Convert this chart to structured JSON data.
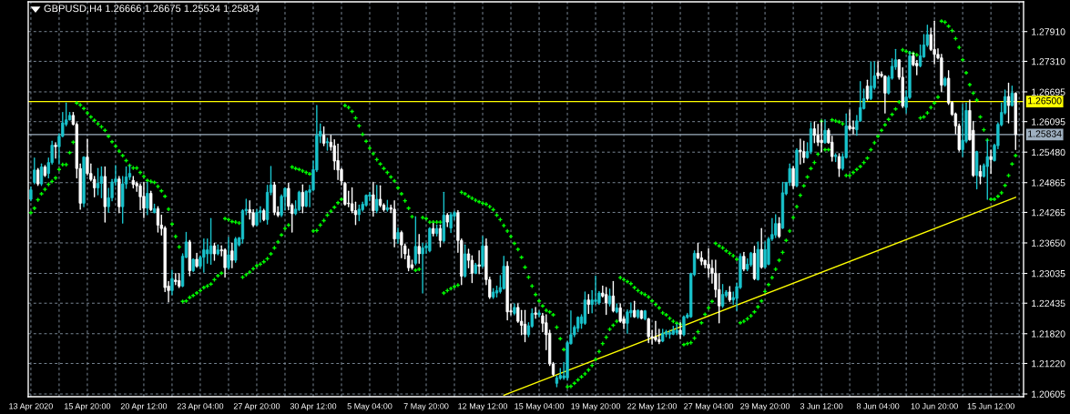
{
  "chart_data": {
    "type": "candlestick",
    "title": "GBPUSD,H4 1.26666 1.26675 1.25534 1.25834",
    "categories": [
      "13 Apr 2020",
      null,
      null,
      null,
      null,
      null,
      null,
      null,
      null,
      null,
      null,
      null,
      null,
      null,
      null,
      null,
      "15 Apr 20:00",
      null,
      null,
      null,
      null,
      null,
      null,
      null,
      null,
      null,
      null,
      null,
      null,
      null,
      null,
      null,
      "20 Apr 12:00",
      null,
      null,
      null,
      null,
      null,
      null,
      null,
      null,
      null,
      null,
      null,
      null,
      null,
      null,
      null,
      "23 Apr 04:00",
      null,
      null,
      null,
      null,
      null,
      null,
      null,
      null,
      null,
      null,
      null,
      null,
      null,
      null,
      null,
      "27 Apr 20:00",
      null,
      null,
      null,
      null,
      null,
      null,
      null,
      null,
      null,
      null,
      null,
      null,
      null,
      null,
      null,
      "30 Apr 12:00",
      null,
      null,
      null,
      null,
      null,
      null,
      null,
      null,
      null,
      null,
      null,
      null,
      null,
      null,
      null,
      "5 May 04:00",
      null,
      null,
      null,
      null,
      null,
      null,
      null,
      null,
      null,
      null,
      null,
      null,
      null,
      null,
      null,
      "7 May 20:00",
      null,
      null,
      null,
      null,
      null,
      null,
      null,
      null,
      null,
      null,
      null,
      null,
      null,
      null,
      null,
      "12 May 12:00",
      null,
      null,
      null,
      null,
      null,
      null,
      null,
      null,
      null,
      null,
      null,
      null,
      null,
      null,
      null,
      "15 May 04:00",
      null,
      null,
      null,
      null,
      null,
      null,
      null,
      null,
      null,
      null,
      null,
      null,
      null,
      null,
      null,
      "19 May 20:00",
      null,
      null,
      null,
      null,
      null,
      null,
      null,
      null,
      null,
      null,
      null,
      null,
      null,
      null,
      null,
      "22 May 12:00",
      null,
      null,
      null,
      null,
      null,
      null,
      null,
      null,
      null,
      null,
      null,
      null,
      null,
      null,
      null,
      "27 May 04:00",
      null,
      null,
      null,
      null,
      null,
      null,
      null,
      null,
      null,
      null,
      null,
      null,
      null,
      null,
      null,
      "29 May 20:00",
      null,
      null,
      null,
      null,
      null,
      null,
      null,
      null,
      null,
      null,
      null,
      null,
      null,
      null,
      null,
      "3 Jun 12:00",
      null,
      null,
      null,
      null,
      null,
      null,
      null,
      null,
      null,
      null,
      null,
      null,
      null,
      null,
      null,
      "8 Jun 04:00",
      null,
      null,
      null,
      null,
      null,
      null,
      null,
      null,
      null,
      null,
      null,
      null,
      null,
      null,
      null,
      "10 Jun 20:00",
      null,
      null,
      null,
      null,
      null,
      null,
      null,
      null,
      null,
      null,
      null,
      null,
      null,
      null,
      null,
      "15 Jun 12:00",
      null,
      null,
      null,
      null,
      null,
      null,
      null
    ],
    "ohlc": [
      [
        1.2453,
        1.2478,
        1.245,
        1.2472
      ],
      [
        1.2487,
        1.2536,
        1.2484,
        1.2512
      ],
      [
        1.2512,
        1.2515,
        1.2481,
        1.2484
      ],
      [
        1.2484,
        1.2524,
        1.2481,
        1.2518
      ],
      [
        1.2518,
        1.2521,
        1.2499,
        1.2501
      ],
      [
        1.2505,
        1.2536,
        1.2496,
        1.2527
      ],
      [
        1.2527,
        1.257,
        1.2524,
        1.2562
      ],
      [
        1.2562,
        1.2567,
        1.2536,
        1.2559
      ],
      [
        1.2559,
        1.2585,
        1.2524,
        1.258
      ],
      [
        1.258,
        1.2628,
        1.2579,
        1.2607
      ],
      [
        1.2604,
        1.2647,
        1.2601,
        1.2613
      ],
      [
        1.2613,
        1.2628,
        1.2613,
        1.2622
      ],
      [
        1.2622,
        1.2628,
        1.2603,
        1.2604
      ],
      [
        1.2604,
        1.2607,
        1.2496,
        1.2515
      ],
      [
        1.2515,
        1.2524,
        1.2433,
        1.2445
      ],
      [
        1.2445,
        1.2539,
        1.2438,
        1.2538
      ],
      [
        1.2538,
        1.2574,
        1.2502,
        1.2505
      ],
      [
        1.2505,
        1.2524,
        1.249,
        1.2493
      ],
      [
        1.2493,
        1.2499,
        1.2458,
        1.2476
      ],
      [
        1.2476,
        1.2515,
        1.2462,
        1.2485
      ],
      [
        1.2485,
        1.2518,
        1.2456,
        1.2499
      ],
      [
        1.2499,
        1.2518,
        1.2407,
        1.2438
      ],
      [
        1.2438,
        1.2475,
        1.2427,
        1.2456
      ],
      [
        1.2456,
        1.2493,
        1.245,
        1.2488
      ],
      [
        1.2488,
        1.2521,
        1.2481,
        1.2494
      ],
      [
        1.2494,
        1.2499,
        1.2426,
        1.2438
      ],
      [
        1.2438,
        1.2499,
        1.2405,
        1.2484
      ],
      [
        1.2484,
        1.2518,
        1.2475,
        1.2498
      ],
      [
        1.2498,
        1.2521,
        1.2493,
        1.2505
      ],
      [
        1.2491,
        1.2499,
        1.2476,
        1.2483
      ],
      [
        1.2485,
        1.2488,
        1.2469,
        1.248
      ],
      [
        1.248,
        1.2484,
        1.2432,
        1.2458
      ],
      [
        1.2459,
        1.2487,
        1.2416,
        1.2435
      ],
      [
        1.2435,
        1.2487,
        1.2422,
        1.2465
      ],
      [
        1.2465,
        1.2469,
        1.243,
        1.2432
      ],
      [
        1.2426,
        1.2443,
        1.2426,
        1.2434
      ],
      [
        1.2434,
        1.2438,
        1.2387,
        1.2401
      ],
      [
        1.2401,
        1.2421,
        1.2381,
        1.2394
      ],
      [
        1.2395,
        1.2398,
        1.2267,
        1.2275
      ],
      [
        1.2278,
        1.2287,
        1.2246,
        1.2269
      ],
      [
        1.2269,
        1.231,
        1.2261,
        1.2293
      ],
      [
        1.229,
        1.2303,
        1.2281,
        1.2287
      ],
      [
        1.2289,
        1.2303,
        1.2275,
        1.2278
      ],
      [
        1.2278,
        1.2343,
        1.2277,
        1.2338
      ],
      [
        1.2336,
        1.2386,
        1.2335,
        1.2367
      ],
      [
        1.2367,
        1.237,
        1.2299,
        1.2309
      ],
      [
        1.2309,
        1.2333,
        1.2307,
        1.2332
      ],
      [
        1.2332,
        1.2344,
        1.2316,
        1.2318
      ],
      [
        1.2318,
        1.2339,
        1.2315,
        1.2336
      ],
      [
        1.2336,
        1.2373,
        1.2306,
        1.2351
      ],
      [
        1.2343,
        1.2373,
        1.2324,
        1.2351
      ],
      [
        1.2343,
        1.2414,
        1.2322,
        1.2359
      ],
      [
        1.2359,
        1.2364,
        1.233,
        1.2343
      ],
      [
        1.2343,
        1.2361,
        1.2341,
        1.2351
      ],
      [
        1.2351,
        1.2359,
        1.2339,
        1.2349
      ],
      [
        1.2351,
        1.2353,
        1.2296,
        1.2315
      ],
      [
        1.2315,
        1.2376,
        1.2312,
        1.2341
      ],
      [
        1.2349,
        1.2364,
        1.2315,
        1.233
      ],
      [
        1.233,
        1.2376,
        1.2326,
        1.2373
      ],
      [
        1.2361,
        1.2376,
        1.2359,
        1.2375
      ],
      [
        1.2373,
        1.2432,
        1.2365,
        1.243
      ],
      [
        1.243,
        1.2453,
        1.2422,
        1.2433
      ],
      [
        1.2432,
        1.245,
        1.2413,
        1.2426
      ],
      [
        1.2426,
        1.2432,
        1.2398,
        1.2401
      ],
      [
        1.2401,
        1.2432,
        1.24,
        1.2427
      ],
      [
        1.2426,
        1.2438,
        1.2407,
        1.243
      ],
      [
        1.243,
        1.2433,
        1.241,
        1.2412
      ],
      [
        1.2412,
        1.2481,
        1.2403,
        1.2467
      ],
      [
        1.2467,
        1.2519,
        1.2462,
        1.2482
      ],
      [
        1.2482,
        1.2487,
        1.2422,
        1.2427
      ],
      [
        1.2427,
        1.2438,
        1.2418,
        1.2421
      ],
      [
        1.2421,
        1.2462,
        1.2418,
        1.2459
      ],
      [
        1.2458,
        1.2476,
        1.2432,
        1.2475
      ],
      [
        1.2475,
        1.2485,
        1.2432,
        1.2439
      ],
      [
        1.2441,
        1.2444,
        1.2387,
        1.2424
      ],
      [
        1.2424,
        1.245,
        1.2422,
        1.2433
      ],
      [
        1.2432,
        1.2469,
        1.243,
        1.2467
      ],
      [
        1.2467,
        1.2482,
        1.2426,
        1.2439
      ],
      [
        1.2439,
        1.247,
        1.2438,
        1.2469
      ],
      [
        1.2467,
        1.2481,
        1.2438,
        1.2472
      ],
      [
        1.2472,
        1.253,
        1.247,
        1.2513
      ],
      [
        1.2512,
        1.2642,
        1.2509,
        1.2582
      ],
      [
        1.258,
        1.2605,
        1.2567,
        1.259
      ],
      [
        1.2582,
        1.2599,
        1.2561,
        1.2566
      ],
      [
        1.2567,
        1.2576,
        1.2552,
        1.2569
      ],
      [
        1.2568,
        1.2582,
        1.2552,
        1.2559
      ],
      [
        1.2561,
        1.2573,
        1.2513,
        1.253
      ],
      [
        1.2531,
        1.2564,
        1.2493,
        1.2512
      ],
      [
        1.2513,
        1.2515,
        1.2482,
        1.249
      ],
      [
        1.2485,
        1.2487,
        1.2441,
        1.2443
      ],
      [
        1.2445,
        1.2469,
        1.2438,
        1.2444
      ],
      [
        1.2444,
        1.2476,
        1.2426,
        1.243
      ],
      [
        1.243,
        1.2447,
        1.2402,
        1.2422
      ],
      [
        1.2422,
        1.2441,
        1.241,
        1.2433
      ],
      [
        1.2432,
        1.2447,
        1.2429,
        1.2443
      ],
      [
        1.2441,
        1.2462,
        1.2439,
        1.2461
      ],
      [
        1.2459,
        1.2467,
        1.245,
        1.2462
      ],
      [
        1.2462,
        1.2487,
        1.2419,
        1.243
      ],
      [
        1.243,
        1.2481,
        1.2426,
        1.2453
      ],
      [
        1.2453,
        1.248,
        1.2438,
        1.2441
      ],
      [
        1.2441,
        1.2444,
        1.2429,
        1.2432
      ],
      [
        1.2432,
        1.2451,
        1.2429,
        1.2436
      ],
      [
        1.2436,
        1.2441,
        1.2426,
        1.2433
      ],
      [
        1.2433,
        1.245,
        1.2357,
        1.2373
      ],
      [
        1.2373,
        1.2395,
        1.2364,
        1.2386
      ],
      [
        1.2386,
        1.2389,
        1.2335,
        1.2361
      ],
      [
        1.2359,
        1.2363,
        1.2333,
        1.2343
      ],
      [
        1.2339,
        1.2352,
        1.2309,
        1.2315
      ],
      [
        1.2321,
        1.233,
        1.2312,
        1.2315
      ],
      [
        1.2324,
        1.2418,
        1.2321,
        1.2358
      ],
      [
        1.2358,
        1.2382,
        1.2324,
        1.2343
      ],
      [
        1.2343,
        1.2364,
        1.2264,
        1.2355
      ],
      [
        1.2355,
        1.2364,
        1.2344,
        1.2359
      ],
      [
        1.2349,
        1.2396,
        1.2347,
        1.2394
      ],
      [
        1.2394,
        1.2404,
        1.2379,
        1.2384
      ],
      [
        1.2384,
        1.2401,
        1.2379,
        1.2394
      ],
      [
        1.2394,
        1.2401,
        1.2357,
        1.237
      ],
      [
        1.2369,
        1.2467,
        1.2367,
        1.2421
      ],
      [
        1.2421,
        1.2424,
        1.2398,
        1.2407
      ],
      [
        1.2395,
        1.2426,
        1.2386,
        1.2422
      ],
      [
        1.2419,
        1.2429,
        1.2412,
        1.2426
      ],
      [
        1.2426,
        1.243,
        1.2346,
        1.237
      ],
      [
        1.237,
        1.2373,
        1.2281,
        1.2298
      ],
      [
        1.2298,
        1.2361,
        1.2296,
        1.2343
      ],
      [
        1.2343,
        1.2352,
        1.2315,
        1.233
      ],
      [
        1.233,
        1.2339,
        1.2285,
        1.2304
      ],
      [
        1.2304,
        1.2324,
        1.2303,
        1.2321
      ],
      [
        1.2321,
        1.2349,
        1.2303,
        1.2318
      ],
      [
        1.2318,
        1.2378,
        1.2316,
        1.2359
      ],
      [
        1.2359,
        1.2373,
        1.2281,
        1.2291
      ],
      [
        1.2291,
        1.2296,
        1.2253,
        1.2256
      ],
      [
        1.2256,
        1.2273,
        1.2253,
        1.2266
      ],
      [
        1.2264,
        1.2278,
        1.2256,
        1.2269
      ],
      [
        1.2267,
        1.2299,
        1.2264,
        1.2275
      ],
      [
        1.2273,
        1.2338,
        1.2272,
        1.2318
      ],
      [
        1.2318,
        1.2327,
        1.221,
        1.2226
      ],
      [
        1.2228,
        1.2242,
        1.222,
        1.2226
      ],
      [
        1.2223,
        1.2242,
        1.222,
        1.2235
      ],
      [
        1.2235,
        1.2242,
        1.2205,
        1.2207
      ],
      [
        1.2207,
        1.2229,
        1.218,
        1.2199
      ],
      [
        1.2201,
        1.2229,
        1.2166,
        1.2181
      ],
      [
        1.218,
        1.2204,
        1.2176,
        1.2198
      ],
      [
        1.2197,
        1.2232,
        1.2195,
        1.2223
      ],
      [
        1.2224,
        1.2235,
        1.2213,
        1.2221
      ],
      [
        1.222,
        1.2228,
        1.2216,
        1.2224
      ],
      [
        1.2218,
        1.2223,
        1.2186,
        1.2203
      ],
      [
        1.2204,
        1.222,
        1.215,
        1.218
      ],
      [
        1.2183,
        1.2189,
        1.2118,
        1.2121
      ],
      [
        1.2121,
        1.2124,
        1.2097,
        1.21
      ],
      [
        1.2082,
        1.2097,
        1.2075,
        1.2093
      ],
      [
        1.2092,
        1.2112,
        1.209,
        1.2098
      ],
      [
        1.2093,
        1.2124,
        1.209,
        1.2097
      ],
      [
        1.2093,
        1.2167,
        1.2089,
        1.2164
      ],
      [
        1.2162,
        1.2228,
        1.2161,
        1.218
      ],
      [
        1.218,
        1.2198,
        1.2176,
        1.2195
      ],
      [
        1.2193,
        1.2216,
        1.2186,
        1.2215
      ],
      [
        1.2203,
        1.222,
        1.2193,
        1.2216
      ],
      [
        1.2203,
        1.2266,
        1.2201,
        1.225
      ],
      [
        1.225,
        1.2261,
        1.2223,
        1.2241
      ],
      [
        1.2241,
        1.2269,
        1.2224,
        1.225
      ],
      [
        1.2247,
        1.2298,
        1.2241,
        1.225
      ],
      [
        1.2244,
        1.2267,
        1.2241,
        1.2264
      ],
      [
        1.2264,
        1.2278,
        1.2256,
        1.2258
      ],
      [
        1.2261,
        1.2275,
        1.2221,
        1.2244
      ],
      [
        1.2242,
        1.2272,
        1.2238,
        1.2258
      ],
      [
        1.2258,
        1.2287,
        1.2226,
        1.2228
      ],
      [
        1.2226,
        1.2242,
        1.2224,
        1.2234
      ],
      [
        1.2234,
        1.2242,
        1.2205,
        1.2207
      ],
      [
        1.2212,
        1.2216,
        1.2192,
        1.2203
      ],
      [
        1.2203,
        1.223,
        1.2183,
        1.2226
      ],
      [
        1.2224,
        1.2244,
        1.2216,
        1.2229
      ],
      [
        1.2229,
        1.2247,
        1.2215,
        1.2216
      ],
      [
        1.2216,
        1.223,
        1.2213,
        1.2229
      ],
      [
        1.2228,
        1.2229,
        1.2212,
        1.2213
      ],
      [
        1.2212,
        1.2229,
        1.221,
        1.2228
      ],
      [
        1.2212,
        1.2213,
        1.2164,
        1.2176
      ],
      [
        1.2176,
        1.2189,
        1.2161,
        1.2173
      ],
      [
        1.2175,
        1.2207,
        1.2167,
        1.217
      ],
      [
        1.217,
        1.2191,
        1.2162,
        1.2166
      ],
      [
        1.2167,
        1.2191,
        1.2166,
        1.2183
      ],
      [
        1.2181,
        1.2189,
        1.2176,
        1.2186
      ],
      [
        1.2181,
        1.2189,
        1.2173,
        1.2184
      ],
      [
        1.2181,
        1.2197,
        1.218,
        1.2189
      ],
      [
        1.2184,
        1.2201,
        1.218,
        1.2189
      ],
      [
        1.2189,
        1.2204,
        1.2172,
        1.2181
      ],
      [
        1.218,
        1.2218,
        1.2178,
        1.2216
      ],
      [
        1.2215,
        1.2223,
        1.2213,
        1.222
      ],
      [
        1.2216,
        1.2304,
        1.2215,
        1.2303
      ],
      [
        1.2301,
        1.2349,
        1.2299,
        1.2344
      ],
      [
        1.2344,
        1.2364,
        1.2333,
        1.2335
      ],
      [
        1.2335,
        1.2347,
        1.2321,
        1.2328
      ],
      [
        1.233,
        1.233,
        1.2315,
        1.2321
      ],
      [
        1.2322,
        1.2353,
        1.2296,
        1.2314
      ],
      [
        1.2314,
        1.233,
        1.2284,
        1.2304
      ],
      [
        1.2304,
        1.233,
        1.2256,
        1.2271
      ],
      [
        1.2271,
        1.2303,
        1.2204,
        1.2238
      ],
      [
        1.2238,
        1.2281,
        1.2235,
        1.2261
      ],
      [
        1.2259,
        1.2269,
        1.2256,
        1.2266
      ],
      [
        1.2266,
        1.2277,
        1.2247,
        1.225
      ],
      [
        1.225,
        1.2266,
        1.2241,
        1.2255
      ],
      [
        1.2253,
        1.2284,
        1.2229,
        1.2277
      ],
      [
        1.2275,
        1.2343,
        1.2273,
        1.2338
      ],
      [
        1.2338,
        1.2346,
        1.2309,
        1.2312
      ],
      [
        1.2312,
        1.2333,
        1.2309,
        1.2322
      ],
      [
        1.2321,
        1.2346,
        1.2318,
        1.2344
      ],
      [
        1.2344,
        1.2358,
        1.2291,
        1.2293
      ],
      [
        1.2291,
        1.2367,
        1.229,
        1.2352
      ],
      [
        1.2352,
        1.2394,
        1.2314,
        1.2316
      ],
      [
        1.2316,
        1.2367,
        1.2315,
        1.2352
      ],
      [
        1.2322,
        1.2376,
        1.2321,
        1.2373
      ],
      [
        1.2373,
        1.2414,
        1.237,
        1.2382
      ],
      [
        1.2381,
        1.2422,
        1.2376,
        1.2404
      ],
      [
        1.2404,
        1.2416,
        1.2376,
        1.2378
      ],
      [
        1.2395,
        1.2487,
        1.2394,
        1.2466
      ],
      [
        1.2464,
        1.2487,
        1.2462,
        1.2487
      ],
      [
        1.2487,
        1.2524,
        1.2481,
        1.2515
      ],
      [
        1.2515,
        1.2519,
        1.2475,
        1.248
      ],
      [
        1.248,
        1.2555,
        1.2478,
        1.2552
      ],
      [
        1.2552,
        1.2574,
        1.2524,
        1.2549
      ],
      [
        1.2549,
        1.257,
        1.2527,
        1.2537
      ],
      [
        1.2537,
        1.2567,
        1.2536,
        1.2549
      ],
      [
        1.2549,
        1.2607,
        1.2545,
        1.2595
      ],
      [
        1.2595,
        1.2609,
        1.2567,
        1.2582
      ],
      [
        1.2582,
        1.2604,
        1.2561,
        1.2568
      ],
      [
        1.2572,
        1.2611,
        1.2549,
        1.2567
      ],
      [
        1.2567,
        1.2613,
        1.2566,
        1.2592
      ],
      [
        1.2592,
        1.2595,
        1.2566,
        1.2567
      ],
      [
        1.2568,
        1.258,
        1.253,
        1.2539
      ],
      [
        1.2539,
        1.2545,
        1.2529,
        1.2542
      ],
      [
        1.2539,
        1.2545,
        1.2499,
        1.2515
      ],
      [
        1.2515,
        1.2545,
        1.2512,
        1.2539
      ],
      [
        1.2537,
        1.2625,
        1.2536,
        1.2601
      ],
      [
        1.2601,
        1.2633,
        1.2593,
        1.2595
      ],
      [
        1.2598,
        1.2611,
        1.2585,
        1.2595
      ],
      [
        1.2593,
        1.2622,
        1.2582,
        1.2611
      ],
      [
        1.2611,
        1.269,
        1.261,
        1.2638
      ],
      [
        1.2636,
        1.2675,
        1.2635,
        1.2656
      ],
      [
        1.2681,
        1.2693,
        1.2653,
        1.2656
      ],
      [
        1.2656,
        1.273,
        1.2654,
        1.2681
      ],
      [
        1.2678,
        1.273,
        1.2675,
        1.2702
      ],
      [
        1.2708,
        1.273,
        1.2696,
        1.2702
      ],
      [
        1.2705,
        1.271,
        1.2699,
        1.2702
      ],
      [
        1.2701,
        1.2702,
        1.2627,
        1.2667
      ],
      [
        1.2667,
        1.2702,
        1.2665,
        1.2699
      ],
      [
        1.2697,
        1.2736,
        1.2695,
        1.2721
      ],
      [
        1.272,
        1.2755,
        1.2715,
        1.2734
      ],
      [
        1.2734,
        1.2734,
        1.2695,
        1.2699
      ],
      [
        1.2699,
        1.2718,
        1.2638,
        1.2641
      ],
      [
        1.2638,
        1.2672,
        1.2627,
        1.2659
      ],
      [
        1.2658,
        1.2751,
        1.2656,
        1.2742
      ],
      [
        1.2742,
        1.2748,
        1.2722,
        1.2724
      ],
      [
        1.2727,
        1.2733,
        1.2704,
        1.2722
      ],
      [
        1.2722,
        1.2764,
        1.272,
        1.2742
      ],
      [
        1.274,
        1.2785,
        1.2739,
        1.2764
      ],
      [
        1.2764,
        1.2804,
        1.2761,
        1.2785
      ],
      [
        1.2785,
        1.2798,
        1.2753,
        1.2755
      ],
      [
        1.2755,
        1.2812,
        1.2726,
        1.2745
      ],
      [
        1.2745,
        1.2756,
        1.2736,
        1.2738
      ],
      [
        1.2738,
        1.2745,
        1.267,
        1.2683
      ],
      [
        1.2683,
        1.2699,
        1.2681,
        1.2696
      ],
      [
        1.2697,
        1.2712,
        1.2644,
        1.2647
      ],
      [
        1.2648,
        1.265,
        1.2622,
        1.2624
      ],
      [
        1.2625,
        1.2627,
        1.2585,
        1.2601
      ],
      [
        1.2601,
        1.2605,
        1.255,
        1.2553
      ],
      [
        1.2553,
        1.2644,
        1.2539,
        1.2572
      ],
      [
        1.257,
        1.2647,
        1.2567,
        1.2632
      ],
      [
        1.2632,
        1.2653,
        1.2572,
        1.2573
      ],
      [
        1.2592,
        1.261,
        1.2499,
        1.2501
      ],
      [
        1.2501,
        1.255,
        1.2474,
        1.2549
      ],
      [
        1.2509,
        1.2521,
        1.2484,
        1.2499
      ],
      [
        1.2499,
        1.2524,
        1.2498,
        1.2521
      ],
      [
        1.2519,
        1.2572,
        1.2453,
        1.2539
      ],
      [
        1.2539,
        1.2552,
        1.2505,
        1.2533
      ],
      [
        1.2531,
        1.2564,
        1.253,
        1.2562
      ],
      [
        1.2561,
        1.2607,
        1.2555,
        1.2604
      ],
      [
        1.2603,
        1.2647,
        1.2601,
        1.2628
      ],
      [
        1.2627,
        1.2673,
        1.2625,
        1.266
      ],
      [
        1.266,
        1.2687,
        1.2607,
        1.2642
      ],
      [
        1.2642,
        1.2681,
        1.2641,
        1.2667
      ],
      [
        1.26666,
        1.26675,
        1.25534,
        1.25834
      ]
    ],
    "series": [
      {
        "type": "scatter",
        "color": "#00ff00",
        "marker": "cross",
        "values": [
          1.2426,
          1.2435,
          1.2452,
          1.2464,
          1.2473,
          1.2483,
          1.2489,
          1.2496,
          1.2513,
          1.2523,
          1.2523,
          1.2547,
          1.2568,
          1.2647,
          1.2643,
          1.2636,
          1.2627,
          1.2619,
          1.2612,
          1.2605,
          1.2599,
          1.2592,
          1.258,
          1.2569,
          1.256,
          1.255,
          1.2541,
          1.2531,
          1.2521,
          1.2516,
          1.2516,
          1.2507,
          1.2499,
          1.2491,
          1.2489,
          1.2487,
          1.2479,
          1.247,
          1.2459,
          1.2433,
          1.2403,
          1.2378,
          1.2357,
          1.2247,
          1.2248,
          1.2255,
          1.2259,
          1.2264,
          1.2269,
          1.2275,
          1.2278,
          1.2282,
          1.2291,
          1.2299,
          1.2304,
          1.2414,
          1.2412,
          1.2408,
          1.2407,
          1.2405,
          1.2296,
          1.2301,
          1.2306,
          1.2313,
          1.2319,
          1.2322,
          1.2327,
          1.2333,
          1.2343,
          1.2355,
          1.2367,
          1.2381,
          1.2394,
          1.2401,
          1.2518,
          1.2515,
          1.2513,
          1.251,
          1.2507,
          1.2504,
          1.2389,
          1.239,
          1.2401,
          1.241,
          1.2421,
          1.2429,
          1.2437,
          1.2446,
          1.2453,
          1.2642,
          1.2638,
          1.263,
          1.2617,
          1.2601,
          1.2584,
          1.257,
          1.2556,
          1.2545,
          1.2533,
          1.2524,
          1.2515,
          1.2507,
          1.2498,
          1.249,
          1.2476,
          1.2464,
          1.245,
          1.2435,
          1.2418,
          1.231,
          1.2312,
          1.2416,
          1.2414,
          1.2407,
          1.2407,
          1.2407,
          1.2407,
          1.2264,
          1.2269,
          1.2273,
          1.2277,
          1.228,
          1.2467,
          1.2464,
          1.2459,
          1.2455,
          1.2451,
          1.2448,
          1.2445,
          1.2443,
          1.2438,
          1.2432,
          1.2421,
          1.2412,
          1.24,
          1.2389,
          1.2378,
          1.2364,
          1.2352,
          1.2336,
          1.2316,
          1.2296,
          1.2278,
          1.2261,
          1.2248,
          1.2238,
          1.2229,
          1.2226,
          1.222,
          1.2195,
          1.2172,
          1.215,
          1.2075,
          1.2076,
          1.2082,
          1.2089,
          1.2095,
          1.2101,
          1.2109,
          1.2118,
          1.213,
          1.2146,
          1.2162,
          1.2175,
          1.2191,
          1.2199,
          1.2207,
          1.2295,
          1.2291,
          1.2287,
          1.2283,
          1.2275,
          1.2269,
          1.2264,
          1.2261,
          1.2256,
          1.2248,
          1.2241,
          1.2234,
          1.2224,
          1.222,
          1.2213,
          1.2207,
          1.2203,
          1.2201,
          1.216,
          1.2162,
          1.2164,
          1.2173,
          1.2186,
          1.2204,
          1.2221,
          1.2234,
          1.2247,
          1.2364,
          1.2359,
          1.2355,
          1.2349,
          1.2344,
          1.2339,
          1.2332,
          1.2204,
          1.2207,
          1.2212,
          1.2218,
          1.2226,
          1.2236,
          1.2248,
          1.2267,
          1.2281,
          1.2295,
          1.2312,
          1.233,
          1.2346,
          1.237,
          1.2389,
          1.2416,
          1.2438,
          1.2461,
          1.248,
          1.2498,
          1.2515,
          1.2527,
          1.2544,
          1.261,
          1.2553,
          1.2553,
          1.2613,
          1.2611,
          1.2609,
          1.2605,
          1.2501,
          1.2501,
          1.2507,
          1.2513,
          1.2519,
          1.2527,
          1.2536,
          1.2553,
          1.2567,
          1.258,
          1.2592,
          1.2603,
          1.2614,
          1.2624,
          1.2635,
          1.2649,
          1.2754,
          1.2751,
          1.2748,
          1.2747,
          1.2744,
          1.2617,
          1.2619,
          1.2627,
          1.2638,
          1.2647,
          1.2659,
          1.2812,
          1.281,
          1.2802,
          1.2793,
          1.2777,
          1.2759,
          1.2734,
          1.2708,
          1.2684,
          1.2667,
          1.2653,
          1.2619,
          1.2593,
          1.2572,
          1.2453,
          1.2453,
          1.2459,
          1.2466,
          1.2481,
          1.2501,
          1.2524,
          1.2541
        ]
      },
      {
        "type": "line",
        "color": "#ffff00",
        "values": [
          null,
          null,
          null,
          null,
          null,
          null,
          null,
          null,
          null,
          null,
          null,
          null,
          null,
          null,
          null,
          null,
          null,
          null,
          null,
          null,
          null,
          null,
          null,
          null,
          null,
          null,
          null,
          null,
          null,
          null,
          null,
          null,
          null,
          null,
          null,
          null,
          null,
          null,
          null,
          null,
          null,
          null,
          null,
          null,
          null,
          null,
          null,
          null,
          null,
          null,
          null,
          null,
          null,
          null,
          null,
          null,
          null,
          null,
          null,
          null,
          null,
          null,
          null,
          null,
          null,
          null,
          null,
          null,
          null,
          null,
          null,
          null,
          null,
          null,
          null,
          null,
          null,
          null,
          null,
          null,
          null,
          null,
          null,
          null,
          null,
          null,
          null,
          null,
          null,
          null,
          null,
          null,
          null,
          null,
          null,
          null,
          null,
          null,
          null,
          null,
          null,
          null,
          null,
          null,
          null,
          null,
          null,
          null,
          null,
          null,
          null,
          null,
          null,
          null,
          null,
          null,
          null,
          null,
          null,
          null,
          null,
          null,
          null,
          null,
          null,
          null,
          null,
          null,
          null,
          null,
          null,
          null,
          null,
          null,
          1.2058,
          null,
          null,
          null,
          null,
          null,
          null,
          null,
          null,
          null,
          null,
          null,
          null,
          null,
          null,
          null,
          null,
          null,
          null,
          null,
          null,
          null,
          null,
          null,
          null,
          null,
          null,
          null,
          null,
          null,
          null,
          null,
          null,
          null,
          null,
          null,
          null,
          null,
          null,
          null,
          null,
          null,
          null,
          null,
          null,
          null,
          null,
          null,
          null,
          null,
          null,
          null,
          null,
          null,
          null,
          null,
          null,
          null,
          null,
          null,
          null,
          null,
          null,
          null,
          null,
          null,
          null,
          null,
          null,
          null,
          null,
          null,
          null,
          null,
          null,
          null,
          null,
          null,
          null,
          null,
          null,
          null,
          null,
          null,
          null,
          null,
          null,
          null,
          null,
          null,
          null,
          null,
          null,
          null,
          null,
          null,
          null,
          null,
          null,
          null,
          null,
          null,
          null,
          null,
          null,
          null,
          null,
          null,
          null,
          null,
          null,
          null,
          null,
          null,
          null,
          null,
          null,
          null,
          null,
          null,
          null,
          null,
          null,
          null,
          null,
          null,
          null,
          null,
          null,
          null,
          null,
          null,
          null,
          null,
          null,
          null,
          null,
          null,
          null,
          null,
          null,
          null,
          null,
          null,
          null,
          1.2457
        ]
      }
    ],
    "ref_lines": [
      {
        "axis": "y",
        "value": 1.265,
        "label": "1.26500",
        "color": "#ffff00"
      },
      {
        "axis": "y",
        "value": 1.25834,
        "label": "1.25834",
        "color": "#9fb0c0"
      }
    ],
    "ylim": [
      1.2055,
      1.2851
    ],
    "yticks": [
      {
        "value": 1.2791,
        "label": "1.27910"
      },
      {
        "value": 1.2731,
        "label": "1.27310"
      },
      {
        "value": 1.26695,
        "label": "1.26695"
      },
      {
        "value": 1.26095,
        "label": "1.26095"
      },
      {
        "value": 1.2548,
        "label": "1.25480"
      },
      {
        "value": 1.24865,
        "label": "1.24865"
      },
      {
        "value": 1.24265,
        "label": "1.24265"
      },
      {
        "value": 1.2365,
        "label": "1.23650"
      },
      {
        "value": 1.23035,
        "label": "1.23035"
      },
      {
        "value": 1.22435,
        "label": "1.22435"
      },
      {
        "value": 1.2182,
        "label": "1.21820"
      },
      {
        "value": 1.2122,
        "label": "1.21220"
      },
      {
        "value": 1.20605,
        "label": "1.20605"
      }
    ],
    "grid": true
  }
}
